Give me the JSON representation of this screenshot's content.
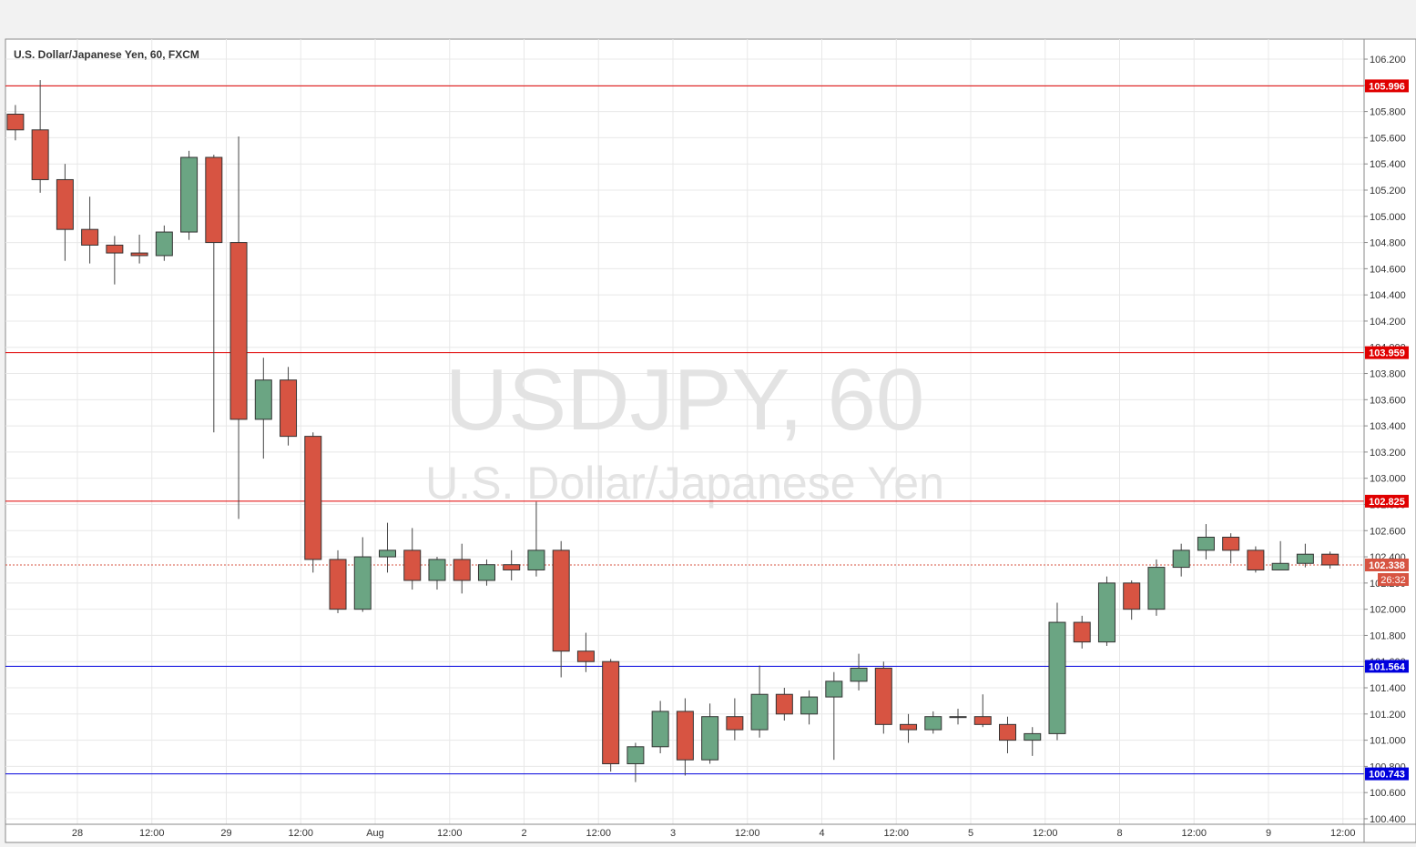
{
  "chart_data": {
    "type": "candlestick",
    "title": "U.S. Dollar/Japanese Yen, 60, FXCM",
    "watermark_symbol": "USDJPY, 60",
    "watermark_name": "U.S. Dollar/Japanese Yen",
    "categories": [
      null,
      null,
      null,
      null,
      null,
      null,
      null,
      null,
      null,
      null,
      null,
      null,
      null,
      null,
      null,
      null,
      null,
      null,
      null,
      null,
      null,
      null,
      null,
      null,
      null,
      null,
      null,
      null,
      null,
      null,
      null,
      null,
      null,
      null,
      null,
      null,
      null,
      null,
      null,
      null,
      null,
      null,
      null,
      null,
      null,
      null,
      null,
      null,
      null,
      null,
      null,
      null,
      null,
      null
    ],
    "open": [
      105.78,
      105.66,
      105.28,
      104.9,
      104.78,
      104.72,
      104.7,
      104.88,
      105.45,
      104.8,
      103.45,
      103.75,
      103.32,
      102.38,
      102.0,
      102.4,
      102.45,
      102.22,
      102.38,
      102.22,
      102.34,
      102.3,
      102.45,
      101.68,
      101.6,
      100.82,
      100.95,
      101.22,
      100.85,
      101.18,
      101.08,
      101.35,
      101.2,
      101.33,
      101.45,
      101.55,
      101.12,
      101.08,
      101.18,
      101.18,
      101.12,
      101.0,
      101.05,
      101.9,
      101.75,
      102.2,
      102.0,
      102.32,
      102.45,
      102.55,
      102.45,
      102.3,
      102.35,
      102.42
    ],
    "high": [
      105.85,
      106.04,
      105.4,
      105.15,
      104.85,
      104.86,
      104.93,
      105.5,
      105.47,
      105.61,
      103.92,
      103.85,
      103.35,
      102.45,
      102.55,
      102.66,
      102.62,
      102.4,
      102.5,
      102.38,
      102.45,
      102.82,
      102.52,
      101.82,
      101.62,
      100.98,
      101.3,
      101.32,
      101.28,
      101.32,
      101.57,
      101.4,
      101.38,
      101.52,
      101.66,
      101.6,
      101.2,
      101.22,
      101.24,
      101.35,
      101.18,
      101.1,
      102.05,
      101.95,
      102.25,
      102.22,
      102.38,
      102.5,
      102.65,
      102.58,
      102.48,
      102.52,
      102.5,
      102.44
    ],
    "low": [
      105.58,
      105.18,
      104.66,
      104.64,
      104.48,
      104.64,
      104.66,
      104.82,
      103.35,
      102.69,
      103.15,
      103.25,
      102.28,
      101.97,
      101.98,
      102.28,
      102.15,
      102.15,
      102.12,
      102.18,
      102.22,
      102.25,
      101.48,
      101.52,
      100.76,
      100.68,
      100.9,
      100.73,
      100.82,
      101.0,
      101.02,
      101.15,
      101.12,
      100.85,
      101.38,
      101.05,
      100.98,
      101.05,
      101.12,
      101.1,
      100.9,
      100.88,
      101.0,
      101.7,
      101.72,
      101.92,
      101.95,
      102.25,
      102.38,
      102.35,
      102.28,
      102.3,
      102.32,
      102.31
    ],
    "close": [
      105.66,
      105.28,
      104.9,
      104.78,
      104.72,
      104.7,
      104.88,
      105.45,
      104.8,
      103.45,
      103.75,
      103.32,
      102.38,
      102.0,
      102.4,
      102.45,
      102.22,
      102.38,
      102.22,
      102.34,
      102.3,
      102.45,
      101.68,
      101.6,
      100.82,
      100.95,
      101.22,
      100.85,
      101.18,
      101.08,
      101.35,
      101.2,
      101.33,
      101.45,
      101.55,
      101.12,
      101.08,
      101.18,
      101.18,
      101.12,
      101.0,
      101.05,
      101.9,
      101.75,
      102.2,
      102.0,
      102.32,
      102.45,
      102.55,
      102.45,
      102.3,
      102.35,
      102.42,
      102.338
    ],
    "up_color": "#6ba583",
    "down_color": "#d75442",
    "ylim": [
      100.247,
      106.353
    ],
    "yticks": [
      {
        "value": 100.4,
        "label": "100.400"
      },
      {
        "value": 100.6,
        "label": "100.600"
      },
      {
        "value": 100.8,
        "label": "100.800"
      },
      {
        "value": 101.0,
        "label": "101.000"
      },
      {
        "value": 101.2,
        "label": "101.200"
      },
      {
        "value": 101.4,
        "label": "101.400"
      },
      {
        "value": 101.6,
        "label": "101.600"
      },
      {
        "value": 101.8,
        "label": "101.800"
      },
      {
        "value": 102.0,
        "label": "102.000"
      },
      {
        "value": 102.2,
        "label": "102.200"
      },
      {
        "value": 102.4,
        "label": "102.400"
      },
      {
        "value": 102.6,
        "label": "102.600"
      },
      {
        "value": 102.8,
        "label": "102.800"
      },
      {
        "value": 103.0,
        "label": "103.000"
      },
      {
        "value": 103.2,
        "label": "103.200"
      },
      {
        "value": 103.4,
        "label": "103.400"
      },
      {
        "value": 103.6,
        "label": "103.600"
      },
      {
        "value": 103.8,
        "label": "103.800"
      },
      {
        "value": 104.0,
        "label": "104.000"
      },
      {
        "value": 104.2,
        "label": "104.200"
      },
      {
        "value": 104.4,
        "label": "104.400"
      },
      {
        "value": 104.6,
        "label": "104.600"
      },
      {
        "value": 104.8,
        "label": "104.800"
      },
      {
        "value": 105.0,
        "label": "105.000"
      },
      {
        "value": 105.2,
        "label": "105.200"
      },
      {
        "value": 105.4,
        "label": "105.400"
      },
      {
        "value": 105.6,
        "label": "105.600"
      },
      {
        "value": 105.8,
        "label": "105.800"
      },
      {
        "value": 106.0,
        "label": "106.000"
      },
      {
        "value": 106.2,
        "label": "106.200"
      }
    ],
    "xtick_labels": [
      "28",
      "12:00",
      "29",
      "12:00",
      "Aug",
      "12:00",
      "2",
      "12:00",
      "3",
      "12:00",
      "4",
      "12:00",
      "5",
      "12:00",
      "8",
      "12:00",
      "9",
      "12:00"
    ],
    "levels": [
      {
        "value": 105.996,
        "color": "#e00000"
      },
      {
        "value": 103.959,
        "color": "#e00000"
      },
      {
        "value": 102.825,
        "color": "#e00000"
      },
      {
        "value": 101.564,
        "color": "#0000dd"
      },
      {
        "value": 100.743,
        "color": "#0000dd"
      }
    ],
    "last_price": {
      "value": 102.338,
      "color": "#d75442"
    },
    "countdown": "26:32",
    "grid": true
  }
}
